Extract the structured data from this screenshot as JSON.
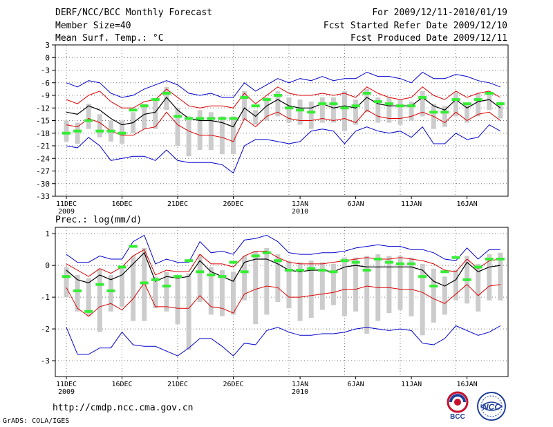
{
  "header": {
    "title": "DERF/NCC/BCC Monthly Forecast",
    "member_size": "Member Size=40",
    "variable": "Mean Surf. Temp.: °C",
    "period": "For 2009/12/11-2010/01/19",
    "start_date": "Fcst Started Refer Date 2009/12/10",
    "produced_date": "Fcst Produced Date 2009/12/11"
  },
  "footer": {
    "url": "http://cmdp.ncc.cma.gov.cn",
    "credit": "GrADS: COLA/IGES",
    "logo_bcc": "BCC",
    "logo_ncc": "NCC"
  },
  "colors": {
    "envelope": "#0000cc",
    "spread": "#dd0000",
    "mean": "#000000",
    "box": "#cccccc",
    "median": "#33ee33"
  },
  "chart_data": [
    {
      "type": "line",
      "name": "temperature-panel",
      "title": "Mean Surf. Temp.: °C",
      "xlabels": [
        {
          "day": 0,
          "text": "11DEC",
          "year": "2009"
        },
        {
          "day": 5,
          "text": "16DEC"
        },
        {
          "day": 10,
          "text": "21DEC"
        },
        {
          "day": 15,
          "text": "26DEC"
        },
        {
          "day": 21,
          "text": "1JAN",
          "year": "2010"
        },
        {
          "day": 26,
          "text": "6JAN"
        },
        {
          "day": 31,
          "text": "11JAN"
        },
        {
          "day": 36,
          "text": "16JAN"
        }
      ],
      "ylim": [
        -33,
        3
      ],
      "yticks": [
        3,
        0,
        -3,
        -6,
        -9,
        -12,
        -15,
        -18,
        -21,
        -24,
        -27,
        -30,
        -33
      ],
      "grid": true,
      "n_days": 40,
      "max": [
        -6,
        -7,
        -5.5,
        -6,
        -8.5,
        -9.5,
        -9,
        -7.5,
        -6.5,
        -5.5,
        -6.5,
        -8.5,
        -9,
        -8.5,
        -9.5,
        -9.5,
        -6,
        -8,
        -6.5,
        -5,
        -6,
        -5,
        -5.5,
        -4.5,
        -5.5,
        -5,
        -5,
        -3.5,
        -4.5,
        -4.5,
        -5,
        -6,
        -3.5,
        -5,
        -5,
        -4,
        -4.5,
        -5.5,
        -6,
        -7
      ],
      "upper": [
        -10,
        -11,
        -9,
        -8,
        -10.5,
        -12,
        -12,
        -10.5,
        -10,
        -7.5,
        -9.5,
        -11.5,
        -12,
        -11.5,
        -11.5,
        -12,
        -8.5,
        -11,
        -9,
        -7,
        -8.5,
        -9,
        -9,
        -8.5,
        -9,
        -8.5,
        -9.5,
        -7,
        -8.5,
        -9.5,
        -10,
        -9.5,
        -7,
        -9,
        -10,
        -8,
        -9.5,
        -8.5,
        -8,
        -9.5
      ],
      "mean": [
        -13,
        -13.5,
        -11.5,
        -12.5,
        -14.5,
        -16,
        -15.5,
        -13.5,
        -13,
        -9.5,
        -12.5,
        -14.5,
        -15,
        -15,
        -15.5,
        -16.5,
        -12,
        -14,
        -11.5,
        -10,
        -11.5,
        -12,
        -12,
        -11,
        -12,
        -11.5,
        -12,
        -9.5,
        -11,
        -11.5,
        -11.5,
        -11.5,
        -9.5,
        -11.5,
        -12.5,
        -10,
        -12,
        -10.5,
        -10,
        -12
      ],
      "lower": [
        -16,
        -16.5,
        -14.5,
        -15.5,
        -17.5,
        -18.5,
        -18.5,
        -17,
        -16.5,
        -13,
        -16,
        -17.5,
        -18.5,
        -18.5,
        -19,
        -20,
        -14.5,
        -16.5,
        -14,
        -13,
        -14.5,
        -15,
        -15,
        -14.5,
        -15,
        -14.5,
        -15.5,
        -12.5,
        -14,
        -14.5,
        -14.5,
        -14,
        -13,
        -14,
        -15.5,
        -13,
        -15,
        -13.5,
        -13,
        -15
      ],
      "min": [
        -21,
        -21.5,
        -19,
        -21,
        -24.5,
        -24,
        -23.5,
        -23.5,
        -24.5,
        -22,
        -24.5,
        -25,
        -25,
        -25,
        -25.5,
        -27.5,
        -21,
        -19.5,
        -19.5,
        -20,
        -20.5,
        -20,
        -17.5,
        -17,
        -17.5,
        -20.5,
        -17.5,
        -16.5,
        -17.5,
        -18,
        -17.5,
        -19,
        -16.5,
        -20.5,
        -20.5,
        -18,
        -19.5,
        -19,
        -16,
        -17.5
      ],
      "box_top": [
        -15,
        -15.5,
        -11,
        -13.5,
        -15,
        -15,
        -13,
        -11,
        -10,
        -7,
        -12,
        -14,
        -12.5,
        -13,
        -14,
        -14,
        -8,
        -12.5,
        -9.5,
        -8,
        -9.5,
        -10,
        -10.5,
        -9.5,
        -9.5,
        -8,
        -10,
        -7.5,
        -9.5,
        -9.5,
        -10,
        -10.5,
        -8,
        -11,
        -11.5,
        -8.5,
        -11,
        -8.5,
        -8.5,
        -10.5
      ],
      "box_bottom": [
        -20,
        -20.5,
        -17,
        -19,
        -20,
        -20.5,
        -18,
        -17,
        -17,
        -12.5,
        -21,
        -23.5,
        -22,
        -22,
        -23,
        -23,
        -15,
        -16,
        -15,
        -14,
        -15.5,
        -16,
        -17,
        -15.5,
        -15.5,
        -17.5,
        -16,
        -13,
        -15.5,
        -15.5,
        -16,
        -15,
        -14,
        -17,
        -16.5,
        -14,
        -15.5,
        -14,
        -12.5,
        -14.5
      ],
      "median": [
        -18,
        -17.5,
        -15,
        -17.5,
        -17.5,
        -18,
        -12.5,
        -11.5,
        -10,
        -8.5,
        -14,
        -14.5,
        -14.5,
        -14.5,
        -14.5,
        -14.5,
        -9.5,
        -11.5,
        -10,
        -9,
        -12,
        -12.5,
        -13,
        -11,
        -11,
        -12,
        -11.5,
        -8.5,
        -10.5,
        -11,
        -11.5,
        -11.5,
        -9.5,
        -13,
        -13,
        -10,
        -11,
        -10,
        -8.5,
        -11
      ]
    },
    {
      "type": "line",
      "name": "precipitation-panel",
      "title": "Prec.: log(mm/d)",
      "xlabels": [
        {
          "day": 0,
          "text": "11DEC",
          "year": "2009"
        },
        {
          "day": 5,
          "text": "16DEC"
        },
        {
          "day": 10,
          "text": "21DEC"
        },
        {
          "day": 15,
          "text": "26DEC"
        },
        {
          "day": 21,
          "text": "1JAN",
          "year": "2010"
        },
        {
          "day": 26,
          "text": "6JAN"
        },
        {
          "day": 31,
          "text": "11JAN"
        },
        {
          "day": 36,
          "text": "16JAN"
        }
      ],
      "ylim": [
        -3.5,
        1.2
      ],
      "yticks": [
        1,
        0,
        -1,
        -2,
        -3
      ],
      "grid": true,
      "n_days": 40,
      "max": [
        0.35,
        0.1,
        0.1,
        0.3,
        0.2,
        0.2,
        0.75,
        0.95,
        0.05,
        0.2,
        0.1,
        0.1,
        0.75,
        0.4,
        0.45,
        0.35,
        0.8,
        0.85,
        0.95,
        0.75,
        0.4,
        0.35,
        0.35,
        0.4,
        0.4,
        0.45,
        0.55,
        0.6,
        0.65,
        0.6,
        0.6,
        0.5,
        0.5,
        0.4,
        0.2,
        0.15,
        0.55,
        0.2,
        0.5,
        0.5
      ],
      "upper": [
        0.05,
        -0.15,
        -0.35,
        -0.1,
        -0.25,
        -0.05,
        0.3,
        0.5,
        -0.3,
        -0.15,
        -0.2,
        -0.2,
        0.35,
        0.05,
        0.05,
        -0.05,
        0.3,
        0.45,
        0.45,
        0.25,
        0.1,
        0.05,
        0.05,
        0.05,
        0.1,
        0.15,
        0.2,
        0.25,
        0.2,
        0.2,
        0.25,
        0.2,
        0.15,
        0.05,
        -0.15,
        -0.2,
        0.2,
        -0.1,
        0.15,
        0.2
      ],
      "mean": [
        -0.15,
        -0.45,
        -0.55,
        -0.3,
        -0.45,
        -0.3,
        0.05,
        0.4,
        -0.5,
        -0.35,
        -0.4,
        -0.35,
        0.15,
        -0.2,
        -0.35,
        -0.5,
        0.1,
        0.2,
        0.2,
        0.05,
        -0.15,
        -0.2,
        -0.15,
        -0.15,
        -0.2,
        -0.05,
        0,
        -0.05,
        -0.05,
        -0.05,
        -0.05,
        -0.05,
        -0.15,
        -0.5,
        -0.65,
        -0.45,
        0.1,
        -0.2,
        -0.05,
        0
      ],
      "lower": [
        -0.7,
        -1.35,
        -1.6,
        -1.3,
        -1.2,
        -1.4,
        -1.05,
        -0.55,
        -1.3,
        -1.3,
        -1.35,
        -1.35,
        -0.95,
        -1.3,
        -1.35,
        -1.5,
        -0.9,
        -0.75,
        -0.65,
        -0.7,
        -1.0,
        -1.0,
        -0.95,
        -0.9,
        -0.85,
        -0.75,
        -0.75,
        -0.65,
        -0.7,
        -0.7,
        -0.75,
        -0.75,
        -0.85,
        -1.05,
        -1.2,
        -0.9,
        -0.6,
        -0.95,
        -0.65,
        -0.6
      ],
      "min": [
        -1.95,
        -2.8,
        -2.8,
        -2.6,
        -2.6,
        -2.1,
        -2.5,
        -2.55,
        -2.55,
        -2.7,
        -2.85,
        -2.6,
        -2.3,
        -2.3,
        -2.55,
        -2.85,
        -2.45,
        -2.5,
        -2.05,
        -1.95,
        -2.1,
        -2.2,
        -2.2,
        -2.15,
        -2.15,
        -2.1,
        -2.0,
        -1.95,
        -2.0,
        -2.05,
        -2.0,
        -2.05,
        -2.45,
        -2.5,
        -2.3,
        -1.9,
        -2.05,
        -2.2,
        -2.1,
        -1.9
      ],
      "box_top": [
        -0.05,
        -0.3,
        -0.4,
        -0.1,
        -0.3,
        -0.05,
        0.3,
        0.55,
        -0.35,
        -0.2,
        -0.3,
        -0.25,
        0.35,
        -0.05,
        -0.15,
        -0.2,
        0.3,
        0.45,
        0.55,
        0.35,
        0.15,
        0.1,
        0.15,
        0.1,
        0.05,
        0.25,
        0.25,
        0.3,
        0.35,
        0.3,
        0.3,
        0.25,
        0.05,
        -0.1,
        -0.35,
        -0.15,
        0.3,
        0.05,
        0.35,
        0.4
      ],
      "box_bottom": [
        -1.0,
        -1.45,
        -1.6,
        -2.1,
        -1.45,
        -1.3,
        -1.75,
        -1.75,
        -1.35,
        -1.45,
        -1.85,
        -2.65,
        -1.15,
        -1.55,
        -1.6,
        -1.55,
        -1.1,
        -1.85,
        -1.55,
        -1.15,
        -1.35,
        -1.75,
        -1.65,
        -1.4,
        -1.25,
        -1.6,
        -1.45,
        -2.15,
        -1.75,
        -1.5,
        -1.4,
        -1.6,
        -2.2,
        -1.8,
        -1.55,
        -1.1,
        -1.2,
        -1.45,
        -1.1,
        -1.1
      ],
      "median": [
        -0.35,
        -0.8,
        -1.45,
        -0.6,
        -0.8,
        -0.05,
        0.6,
        -0.55,
        -0.45,
        -0.65,
        -0.35,
        0.15,
        -0.2,
        -0.3,
        -0.35,
        0.1,
        -0.2,
        0.3,
        0.4,
        0.15,
        -0.15,
        -0.15,
        -0.1,
        -0.15,
        -0.2,
        0.15,
        0.1,
        -0.15,
        0.2,
        0.1,
        0.05,
        0.05,
        -0.35,
        -0.65,
        -0.2,
        0.25,
        -0.45,
        -0.05,
        0.2,
        0.2
      ]
    }
  ]
}
